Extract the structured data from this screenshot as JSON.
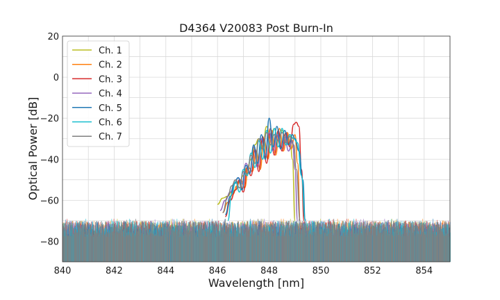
{
  "chart_data": {
    "type": "line",
    "title": "D4364 V20083 Post Burn-In",
    "xlabel": "Wavelength [nm]",
    "ylabel": "Optical Power [dB]",
    "xlim": [
      840,
      855
    ],
    "ylim": [
      -90,
      20
    ],
    "xticks": [
      840,
      842,
      844,
      846,
      848,
      850,
      852,
      854
    ],
    "yticks": [
      20,
      0,
      -20,
      -40,
      -60,
      -80
    ],
    "grid": true,
    "legend_position": "top-left",
    "noise_floor": {
      "x_range": [
        840,
        855
      ],
      "y_range": [
        -90,
        -70
      ]
    },
    "series": [
      {
        "name": "Ch. 1",
        "color": "#bcbd22",
        "x": [
          846.0,
          846.2,
          846.4,
          846.55,
          846.7,
          846.85,
          847.0,
          847.15,
          847.3,
          847.45,
          847.6,
          847.75,
          847.9,
          848.05,
          848.2,
          848.35,
          848.5,
          848.65,
          848.8,
          848.9,
          849.0
        ],
        "y": [
          -62,
          -59,
          -58,
          -56,
          -55,
          -51,
          -48,
          -44,
          -40,
          -33,
          -30,
          -34,
          -24,
          -30,
          -25,
          -34,
          -26,
          -33,
          -28,
          -40,
          -70
        ]
      },
      {
        "name": "Ch. 2",
        "color": "#ff7f0e",
        "x": [
          846.2,
          846.4,
          846.6,
          846.75,
          846.9,
          847.05,
          847.2,
          847.35,
          847.5,
          847.65,
          847.8,
          847.95,
          848.1,
          848.25,
          848.4,
          848.55,
          848.7,
          848.85,
          849.0,
          849.1,
          849.2
        ],
        "y": [
          -66,
          -61,
          -57,
          -53,
          -50,
          -54,
          -44,
          -46,
          -36,
          -45,
          -30,
          -40,
          -26,
          -38,
          -25,
          -36,
          -27,
          -35,
          -28,
          -42,
          -70
        ]
      },
      {
        "name": "Ch. 3",
        "color": "#d62728",
        "x": [
          846.3,
          846.5,
          846.7,
          846.85,
          847.0,
          847.15,
          847.3,
          847.45,
          847.6,
          847.75,
          847.9,
          848.05,
          848.2,
          848.35,
          848.5,
          848.65,
          848.8,
          848.95,
          849.05,
          849.15,
          849.25,
          849.35
        ],
        "y": [
          -68,
          -60,
          -55,
          -50,
          -56,
          -44,
          -48,
          -35,
          -46,
          -29,
          -42,
          -25,
          -38,
          -26,
          -36,
          -27,
          -34,
          -23,
          -22,
          -24,
          -45,
          -70
        ]
      },
      {
        "name": "Ch. 4",
        "color": "#9467bd",
        "x": [
          846.1,
          846.3,
          846.5,
          846.65,
          846.8,
          846.95,
          847.1,
          847.25,
          847.4,
          847.55,
          847.7,
          847.85,
          848.0,
          848.15,
          848.3,
          848.45,
          848.6,
          848.75,
          848.9,
          849.0,
          849.1
        ],
        "y": [
          -65,
          -60,
          -56,
          -52,
          -49,
          -52,
          -42,
          -46,
          -34,
          -44,
          -30,
          -38,
          -27,
          -36,
          -28,
          -35,
          -29,
          -36,
          -31,
          -45,
          -70
        ]
      },
      {
        "name": "Ch. 5",
        "color": "#1f77b4",
        "x": [
          846.3,
          846.5,
          846.65,
          846.8,
          846.95,
          847.1,
          847.25,
          847.4,
          847.55,
          847.7,
          847.85,
          848.0,
          848.15,
          848.3,
          848.45,
          848.6,
          848.75,
          848.9,
          849.0,
          849.15,
          849.3,
          849.4
        ],
        "y": [
          -67,
          -58,
          -52,
          -49,
          -55,
          -43,
          -47,
          -33,
          -42,
          -28,
          -40,
          -20,
          -34,
          -24,
          -35,
          -26,
          -33,
          -28,
          -30,
          -36,
          -50,
          -70
        ]
      },
      {
        "name": "Ch. 6",
        "color": "#17becf",
        "x": [
          846.4,
          846.55,
          846.7,
          846.85,
          847.0,
          847.15,
          847.3,
          847.45,
          847.6,
          847.75,
          847.9,
          848.05,
          848.2,
          848.35,
          848.5,
          848.65,
          848.8,
          848.95,
          849.1,
          849.25,
          849.4
        ],
        "y": [
          -70,
          -57,
          -51,
          -56,
          -45,
          -48,
          -37,
          -44,
          -31,
          -40,
          -26,
          -37,
          -25,
          -34,
          -25,
          -33,
          -28,
          -30,
          -32,
          -48,
          -70
        ]
      },
      {
        "name": "Ch. 7",
        "color": "#7f7f7f",
        "x": [
          846.2,
          846.4,
          846.55,
          846.7,
          846.85,
          847.0,
          847.15,
          847.3,
          847.45,
          847.6,
          847.75,
          847.9,
          848.05,
          848.2,
          848.35,
          848.5,
          848.65,
          848.8,
          848.95,
          849.05,
          849.2
        ],
        "y": [
          -66,
          -58,
          -53,
          -50,
          -54,
          -46,
          -47,
          -38,
          -42,
          -30,
          -35,
          -27,
          -33,
          -28,
          -31,
          -27,
          -32,
          -29,
          -33,
          -45,
          -70
        ]
      }
    ]
  }
}
